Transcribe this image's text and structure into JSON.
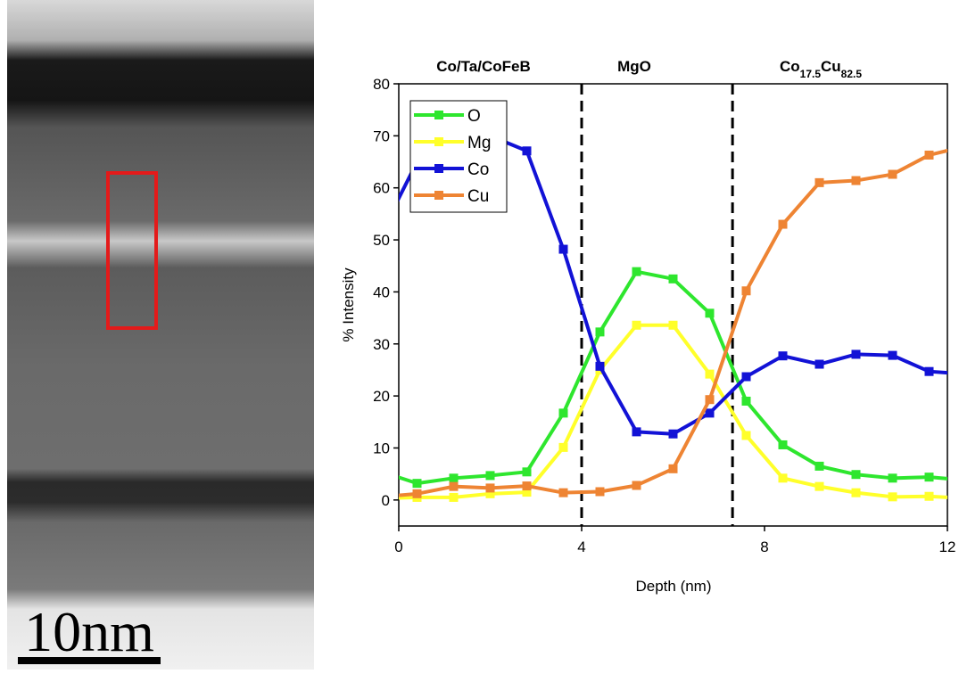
{
  "image": {
    "scale_bar": "10nm"
  },
  "chart_data": {
    "type": "line",
    "xlabel": "Depth (nm)",
    "ylabel": "% Intensity",
    "x": [
      -0.4,
      0.4,
      1.2,
      2.0,
      2.8,
      3.6,
      4.4,
      5.2,
      6.0,
      6.8,
      7.6,
      8.4,
      9.2,
      10.0,
      10.8,
      11.6,
      12.4
    ],
    "series": [
      {
        "name": "O",
        "color": "#2ee62e",
        "values": [
          5.5,
          3.2,
          4.2,
          4.7,
          5.4,
          16.7,
          32.3,
          43.9,
          42.5,
          35.9,
          19.0,
          10.6,
          6.5,
          4.9,
          4.2,
          4.4,
          3.8
        ]
      },
      {
        "name": "Mg",
        "color": "#ffff2a",
        "values": [
          0.3,
          0.5,
          0.5,
          1.2,
          1.5,
          10.1,
          25.0,
          33.6,
          33.6,
          24.2,
          12.4,
          4.2,
          2.6,
          1.4,
          0.6,
          0.7,
          0.3
        ]
      },
      {
        "name": "Co",
        "color": "#1212d6",
        "values": [
          51,
          65,
          69,
          70,
          67.1,
          48.2,
          25.7,
          13.1,
          12.7,
          16.7,
          23.7,
          27.7,
          26.1,
          28.0,
          27.8,
          24.7,
          24.2
        ]
      },
      {
        "name": "Cu",
        "color": "#ee8433",
        "values": [
          0.6,
          1.2,
          2.6,
          2.3,
          2.7,
          1.4,
          1.6,
          2.8,
          6.0,
          19.3,
          40.2,
          53.0,
          61.0,
          61.4,
          62.6,
          66.3,
          68
        ]
      }
    ],
    "xlim": [
      0,
      12
    ],
    "ylim": [
      -5,
      80
    ],
    "xticks": [
      0,
      4,
      8,
      12
    ],
    "yticks": [
      0,
      10,
      20,
      30,
      40,
      50,
      60,
      70,
      80
    ],
    "boundaries": [
      4,
      7.3
    ],
    "region_labels": [
      "Co/Ta/CoFeB",
      "MgO",
      [
        "Co",
        "17.5",
        "Cu",
        "82.5"
      ]
    ],
    "legend": "upper left"
  }
}
